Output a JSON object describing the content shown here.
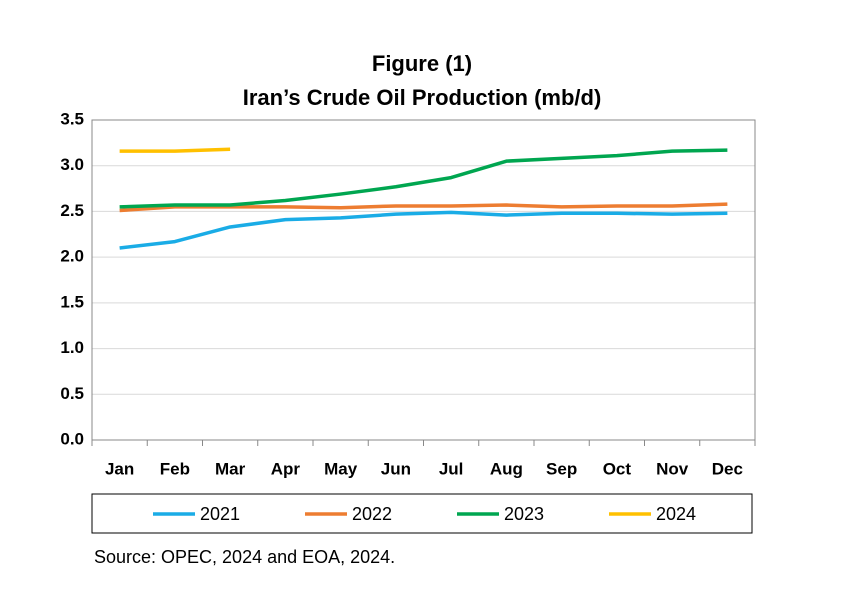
{
  "chart_data": {
    "type": "line",
    "title": "Figure (1)",
    "subtitle": "Iran’s Crude Oil Production (mb/d)",
    "source": "Source: OPEC, 2024 and EOA, 2024.",
    "categories": [
      "Jan",
      "Feb",
      "Mar",
      "Apr",
      "May",
      "Jun",
      "Jul",
      "Aug",
      "Sep",
      "Oct",
      "Nov",
      "Dec"
    ],
    "series": [
      {
        "name": "2021",
        "color": "#1aace6",
        "values": [
          2.1,
          2.17,
          2.33,
          2.41,
          2.43,
          2.47,
          2.49,
          2.46,
          2.48,
          2.48,
          2.47,
          2.48
        ]
      },
      {
        "name": "2022",
        "color": "#ed7d31",
        "values": [
          2.51,
          2.55,
          2.55,
          2.55,
          2.54,
          2.56,
          2.56,
          2.57,
          2.55,
          2.56,
          2.56,
          2.58
        ]
      },
      {
        "name": "2023",
        "color": "#00a650",
        "values": [
          2.55,
          2.57,
          2.57,
          2.62,
          2.69,
          2.77,
          2.87,
          3.05,
          3.08,
          3.11,
          3.16,
          3.17
        ]
      },
      {
        "name": "2024",
        "color": "#ffc000",
        "values": [
          3.16,
          3.16,
          3.18,
          null,
          null,
          null,
          null,
          null,
          null,
          null,
          null,
          null
        ]
      }
    ],
    "ylim": [
      0,
      3.5
    ],
    "yticks": [
      {
        "value": 0,
        "label": "0.0"
      },
      0.5,
      {
        "value": 1,
        "label": "1.0"
      },
      1.5,
      {
        "value": 2,
        "label": "2.0"
      },
      2.5,
      {
        "value": 3,
        "label": "3.0"
      },
      3.5
    ],
    "grid": true,
    "legend": "bottom"
  }
}
